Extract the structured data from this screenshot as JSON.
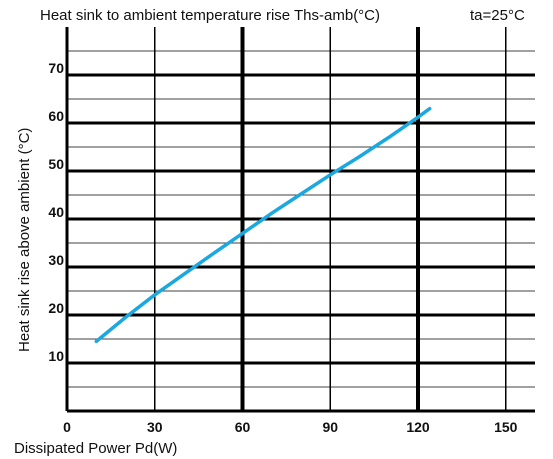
{
  "chart_data": {
    "type": "line",
    "title": "Heat sink to ambient temperature rise Ths-amb(°C)",
    "condition": "ta=25°C",
    "xlabel": "Dissipated Power Pd(W)",
    "ylabel": "Heat sink rise above ambient (°C)",
    "xlim": [
      0,
      160
    ],
    "ylim": [
      0,
      80
    ],
    "x_ticks": [
      0,
      30,
      60,
      90,
      120,
      150
    ],
    "x_tick_labels": [
      "0",
      "30",
      "60",
      "90",
      "120",
      "150"
    ],
    "y_ticks": [
      10,
      20,
      30,
      40,
      50,
      60,
      70
    ],
    "y_tick_labels": [
      "10",
      "20",
      "30",
      "40",
      "50",
      "60",
      "70"
    ],
    "major_x": [
      60,
      120
    ],
    "minor_x": [
      30,
      90,
      150
    ],
    "grid": true,
    "series_color": "#1BA8E0",
    "series": [
      {
        "x": [
          10,
          20,
          30,
          40,
          50,
          60,
          70,
          80,
          90,
          100,
          110,
          120,
          124
        ],
        "y": [
          14.5,
          19.5,
          24.2,
          28.5,
          32.8,
          37.0,
          41.2,
          45.2,
          49.2,
          53.0,
          57.0,
          61.2,
          63.0
        ]
      }
    ]
  }
}
